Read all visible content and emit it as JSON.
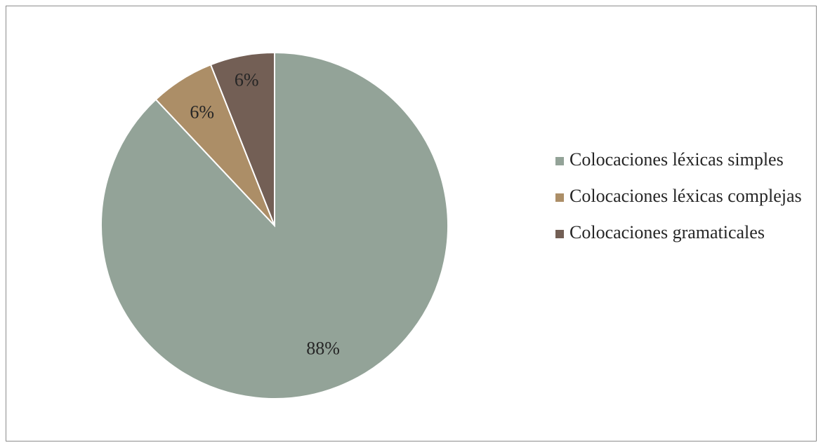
{
  "chart_data": {
    "type": "pie",
    "title": "",
    "slices": [
      {
        "label": "Colocaciones léxicas simples",
        "value": 88,
        "display": "88%",
        "color": "#93a398"
      },
      {
        "label": "Colocaciones léxicas complejas",
        "value": 6,
        "display": "6%",
        "color": "#ac8e67"
      },
      {
        "label": "Colocaciones gramaticales",
        "value": 6,
        "display": "6%",
        "color": "#735f55"
      }
    ],
    "legend_position": "right"
  }
}
